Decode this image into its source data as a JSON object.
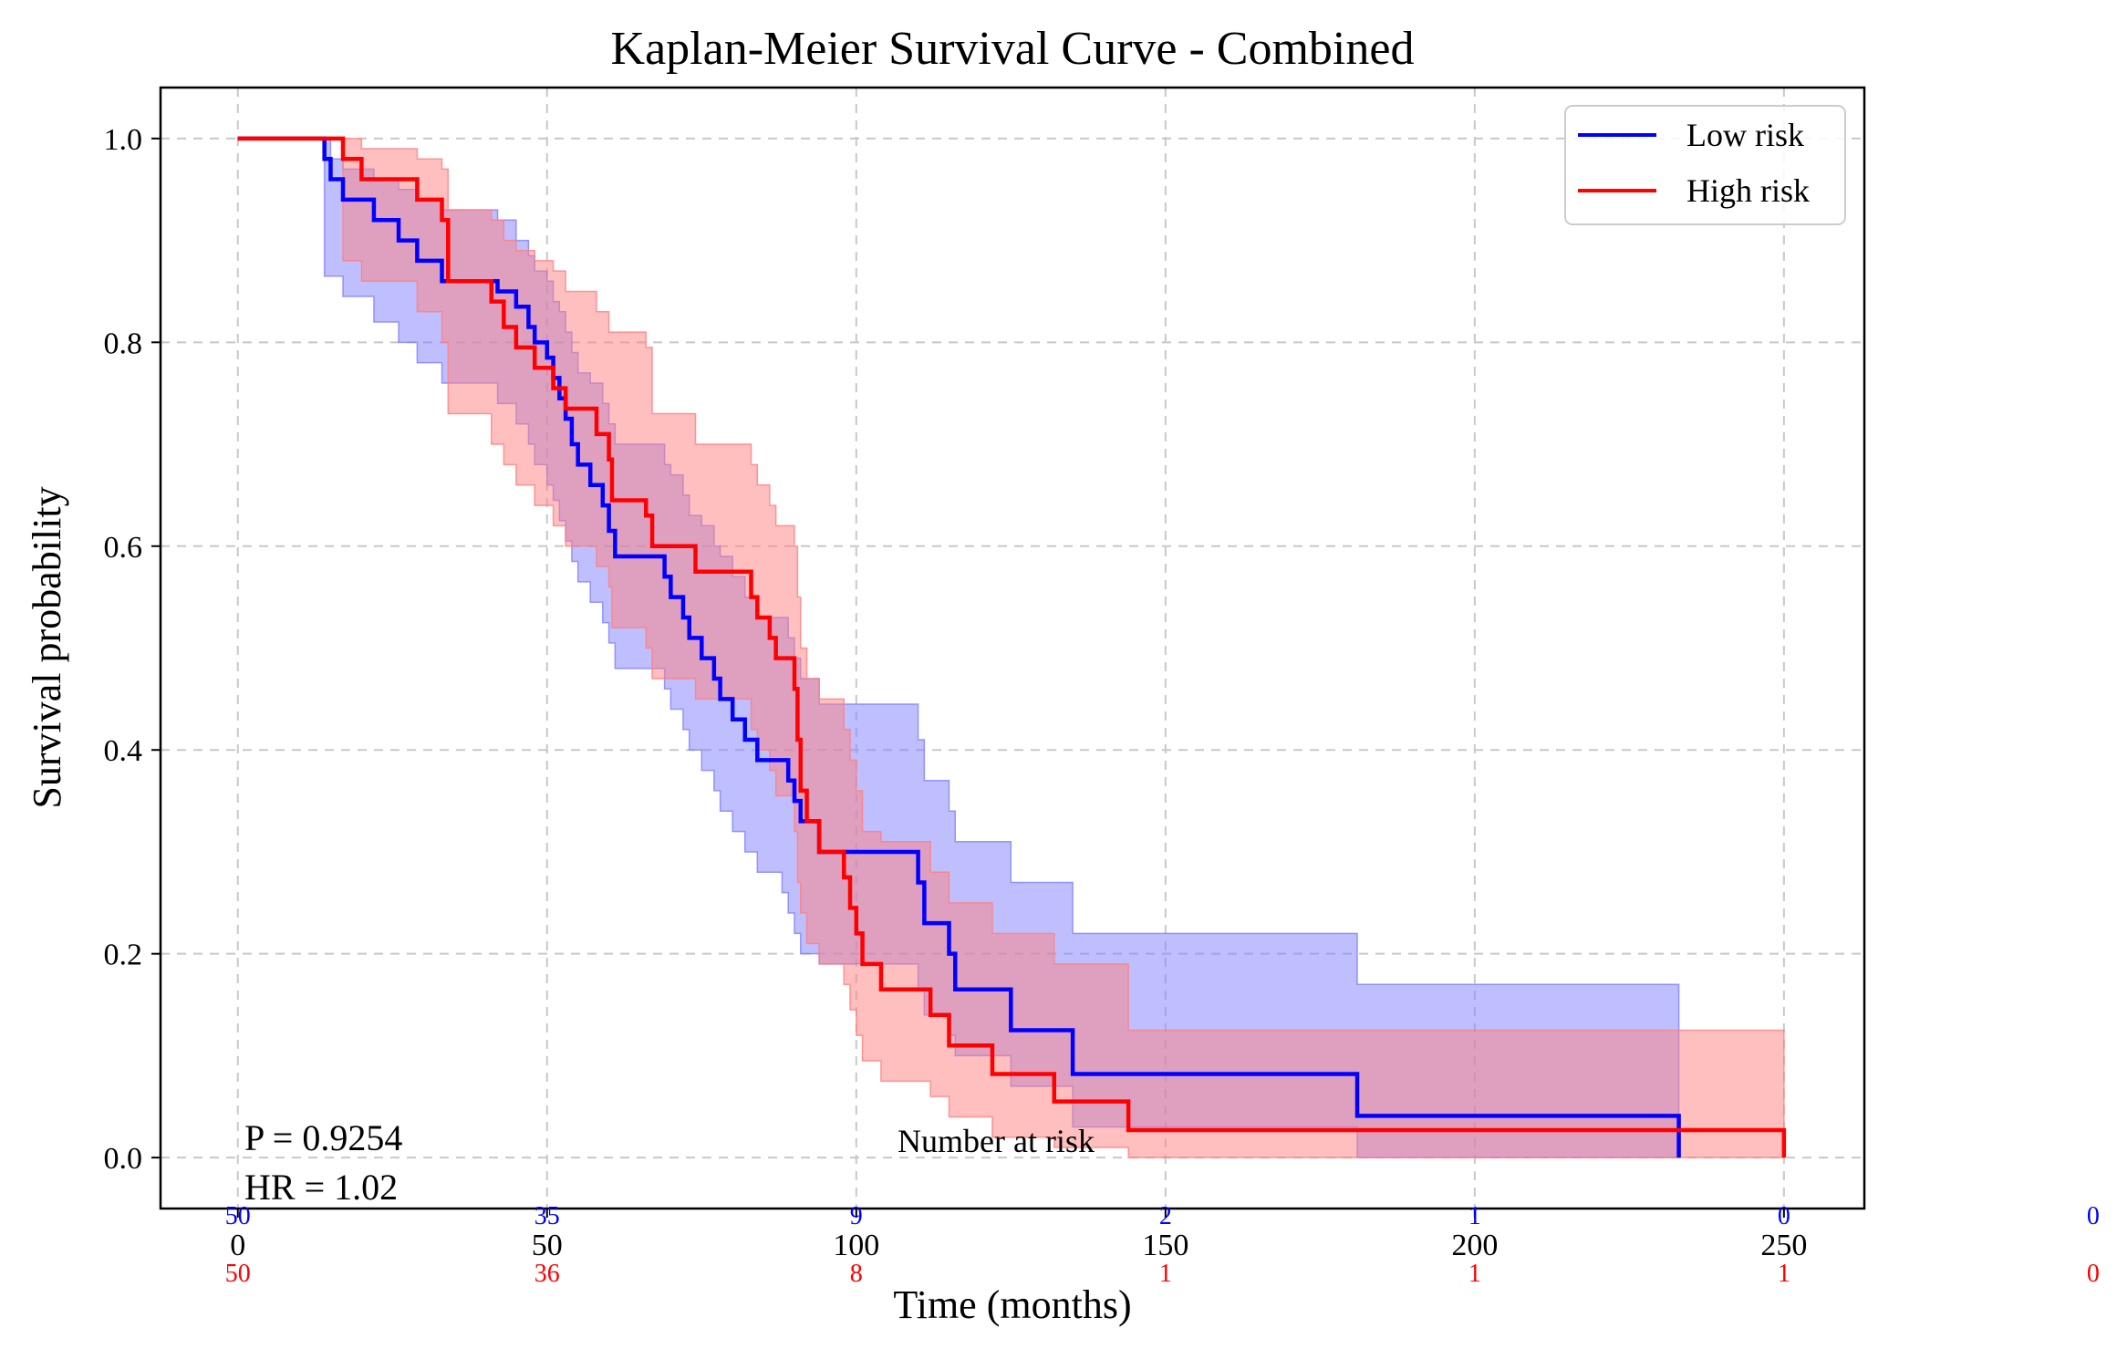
{
  "chart_data": {
    "type": "line",
    "title": "Kaplan-Meier Survival Curve - Combined",
    "xlabel": "Time (months)",
    "ylabel": "Survival probability",
    "xlim": [
      -12.5,
      263
    ],
    "ylim": [
      -0.05,
      1.05
    ],
    "x_ticks": [
      "0",
      "50",
      "100",
      "150",
      "200",
      "250"
    ],
    "x_tick_values": [
      0,
      50,
      100,
      150,
      200,
      250
    ],
    "y_ticks": [
      "0.0",
      "0.2",
      "0.4",
      "0.6",
      "0.8",
      "1.0"
    ],
    "y_tick_values": [
      0,
      0.2,
      0.4,
      0.6,
      0.8,
      1.0
    ],
    "grid": true,
    "legend_position": "top-right",
    "series": [
      {
        "name": "Low risk",
        "color": "#0000ff",
        "band_color": "#8080ff",
        "steps": [
          [
            0,
            1.0
          ],
          [
            14,
            0.98
          ],
          [
            15,
            0.96
          ],
          [
            17,
            0.94
          ],
          [
            22,
            0.92
          ],
          [
            26,
            0.9
          ],
          [
            29,
            0.88
          ],
          [
            33,
            0.86
          ],
          [
            42,
            0.85
          ],
          [
            45,
            0.835
          ],
          [
            47,
            0.815
          ],
          [
            48,
            0.8
          ],
          [
            50,
            0.785
          ],
          [
            51,
            0.765
          ],
          [
            52,
            0.745
          ],
          [
            53,
            0.725
          ],
          [
            54,
            0.7
          ],
          [
            55,
            0.68
          ],
          [
            57,
            0.66
          ],
          [
            59,
            0.64
          ],
          [
            60,
            0.615
          ],
          [
            61,
            0.59
          ],
          [
            64,
            0.59
          ],
          [
            69,
            0.57
          ],
          [
            70,
            0.55
          ],
          [
            72,
            0.53
          ],
          [
            73,
            0.51
          ],
          [
            75,
            0.49
          ],
          [
            77,
            0.47
          ],
          [
            78,
            0.45
          ],
          [
            80,
            0.43
          ],
          [
            82,
            0.41
          ],
          [
            84,
            0.39
          ],
          [
            88,
            0.39
          ],
          [
            89,
            0.37
          ],
          [
            90,
            0.35
          ],
          [
            91,
            0.33
          ],
          [
            94,
            0.3
          ],
          [
            110,
            0.27
          ],
          [
            111,
            0.23
          ],
          [
            115,
            0.2
          ],
          [
            116,
            0.165
          ],
          [
            125,
            0.125
          ],
          [
            135,
            0.082
          ],
          [
            181,
            0.041
          ],
          [
            233,
            0.0
          ]
        ],
        "ci_upper": [
          [
            0,
            1.0
          ],
          [
            14,
            1.0
          ],
          [
            15,
            0.98
          ],
          [
            17,
            0.97
          ],
          [
            22,
            0.96
          ],
          [
            26,
            0.95
          ],
          [
            29,
            0.94
          ],
          [
            33,
            0.93
          ],
          [
            42,
            0.92
          ],
          [
            45,
            0.9
          ],
          [
            47,
            0.885
          ],
          [
            48,
            0.87
          ],
          [
            50,
            0.86
          ],
          [
            51,
            0.84
          ],
          [
            52,
            0.83
          ],
          [
            53,
            0.81
          ],
          [
            54,
            0.79
          ],
          [
            55,
            0.77
          ],
          [
            57,
            0.76
          ],
          [
            59,
            0.74
          ],
          [
            60,
            0.72
          ],
          [
            61,
            0.7
          ],
          [
            69,
            0.68
          ],
          [
            70,
            0.67
          ],
          [
            72,
            0.65
          ],
          [
            73,
            0.63
          ],
          [
            75,
            0.62
          ],
          [
            77,
            0.6
          ],
          [
            78,
            0.59
          ],
          [
            80,
            0.57
          ],
          [
            82,
            0.55
          ],
          [
            84,
            0.53
          ],
          [
            89,
            0.51
          ],
          [
            90,
            0.49
          ],
          [
            91,
            0.47
          ],
          [
            94,
            0.445
          ],
          [
            110,
            0.41
          ],
          [
            111,
            0.37
          ],
          [
            115,
            0.34
          ],
          [
            116,
            0.31
          ],
          [
            125,
            0.27
          ],
          [
            135,
            0.22
          ],
          [
            181,
            0.17
          ],
          [
            233,
            0.17
          ]
        ],
        "ci_lower": [
          [
            0,
            1.0
          ],
          [
            14,
            0.865
          ],
          [
            17,
            0.845
          ],
          [
            22,
            0.82
          ],
          [
            26,
            0.8
          ],
          [
            29,
            0.78
          ],
          [
            33,
            0.76
          ],
          [
            42,
            0.74
          ],
          [
            45,
            0.72
          ],
          [
            47,
            0.7
          ],
          [
            48,
            0.68
          ],
          [
            50,
            0.66
          ],
          [
            51,
            0.645
          ],
          [
            52,
            0.625
          ],
          [
            53,
            0.605
          ],
          [
            54,
            0.585
          ],
          [
            55,
            0.565
          ],
          [
            57,
            0.545
          ],
          [
            59,
            0.525
          ],
          [
            60,
            0.505
          ],
          [
            61,
            0.48
          ],
          [
            64,
            0.48
          ],
          [
            69,
            0.46
          ],
          [
            70,
            0.44
          ],
          [
            72,
            0.42
          ],
          [
            73,
            0.4
          ],
          [
            75,
            0.38
          ],
          [
            77,
            0.36
          ],
          [
            78,
            0.34
          ],
          [
            80,
            0.32
          ],
          [
            82,
            0.3
          ],
          [
            84,
            0.28
          ],
          [
            88,
            0.26
          ],
          [
            89,
            0.24
          ],
          [
            90,
            0.22
          ],
          [
            91,
            0.2
          ],
          [
            94,
            0.19
          ],
          [
            110,
            0.165
          ],
          [
            111,
            0.14
          ],
          [
            115,
            0.12
          ],
          [
            116,
            0.1
          ],
          [
            125,
            0.07
          ],
          [
            135,
            0.03
          ],
          [
            181,
            0.0
          ],
          [
            233,
            0.0
          ]
        ]
      },
      {
        "name": "High risk",
        "color": "#ff0000",
        "band_color": "#ff8080",
        "steps": [
          [
            0,
            1.0
          ],
          [
            17,
            0.98
          ],
          [
            20,
            0.96
          ],
          [
            29,
            0.94
          ],
          [
            33,
            0.92
          ],
          [
            34,
            0.86
          ],
          [
            41,
            0.84
          ],
          [
            43,
            0.815
          ],
          [
            45,
            0.795
          ],
          [
            48,
            0.775
          ],
          [
            51,
            0.755
          ],
          [
            53,
            0.735
          ],
          [
            58,
            0.71
          ],
          [
            60,
            0.685
          ],
          [
            60.5,
            0.645
          ],
          [
            66,
            0.63
          ],
          [
            67,
            0.6
          ],
          [
            74,
            0.575
          ],
          [
            83,
            0.55
          ],
          [
            84,
            0.53
          ],
          [
            86,
            0.51
          ],
          [
            87,
            0.49
          ],
          [
            90,
            0.46
          ],
          [
            90.5,
            0.41
          ],
          [
            91,
            0.36
          ],
          [
            92,
            0.33
          ],
          [
            94,
            0.3
          ],
          [
            98,
            0.275
          ],
          [
            99,
            0.245
          ],
          [
            100,
            0.22
          ],
          [
            101,
            0.19
          ],
          [
            104,
            0.165
          ],
          [
            112,
            0.14
          ],
          [
            115,
            0.11
          ],
          [
            122,
            0.082
          ],
          [
            132,
            0.055
          ],
          [
            144,
            0.027
          ],
          [
            250,
            0.0
          ]
        ],
        "ci_upper": [
          [
            0,
            1.0
          ],
          [
            17,
            1.0
          ],
          [
            20,
            0.99
          ],
          [
            29,
            0.98
          ],
          [
            33,
            0.97
          ],
          [
            34,
            0.93
          ],
          [
            41,
            0.92
          ],
          [
            43,
            0.9
          ],
          [
            45,
            0.89
          ],
          [
            48,
            0.88
          ],
          [
            51,
            0.87
          ],
          [
            53,
            0.85
          ],
          [
            58,
            0.83
          ],
          [
            60,
            0.81
          ],
          [
            66,
            0.795
          ],
          [
            67,
            0.73
          ],
          [
            74,
            0.7
          ],
          [
            83,
            0.68
          ],
          [
            84,
            0.66
          ],
          [
            86,
            0.64
          ],
          [
            87,
            0.62
          ],
          [
            90,
            0.6
          ],
          [
            90.5,
            0.55
          ],
          [
            91,
            0.5
          ],
          [
            92,
            0.47
          ],
          [
            94,
            0.45
          ],
          [
            98,
            0.42
          ],
          [
            99,
            0.39
          ],
          [
            100,
            0.36
          ],
          [
            101,
            0.32
          ],
          [
            104,
            0.31
          ],
          [
            112,
            0.28
          ],
          [
            115,
            0.25
          ],
          [
            122,
            0.22
          ],
          [
            132,
            0.19
          ],
          [
            144,
            0.125
          ],
          [
            250,
            0.125
          ]
        ],
        "ci_lower": [
          [
            0,
            1.0
          ],
          [
            17,
            0.88
          ],
          [
            20,
            0.86
          ],
          [
            29,
            0.83
          ],
          [
            33,
            0.8
          ],
          [
            34,
            0.73
          ],
          [
            41,
            0.7
          ],
          [
            43,
            0.68
          ],
          [
            45,
            0.66
          ],
          [
            48,
            0.64
          ],
          [
            51,
            0.62
          ],
          [
            53,
            0.6
          ],
          [
            58,
            0.58
          ],
          [
            60,
            0.56
          ],
          [
            60.5,
            0.52
          ],
          [
            66,
            0.5
          ],
          [
            67,
            0.47
          ],
          [
            74,
            0.45
          ],
          [
            83,
            0.42
          ],
          [
            84,
            0.4
          ],
          [
            86,
            0.38
          ],
          [
            87,
            0.355
          ],
          [
            90,
            0.32
          ],
          [
            90.5,
            0.27
          ],
          [
            91,
            0.24
          ],
          [
            92,
            0.21
          ],
          [
            94,
            0.19
          ],
          [
            98,
            0.17
          ],
          [
            99,
            0.145
          ],
          [
            100,
            0.12
          ],
          [
            101,
            0.095
          ],
          [
            104,
            0.075
          ],
          [
            112,
            0.06
          ],
          [
            115,
            0.04
          ],
          [
            122,
            0.02
          ],
          [
            132,
            0.01
          ],
          [
            144,
            0.0
          ],
          [
            250,
            0.0
          ]
        ]
      }
    ],
    "annotations": {
      "p_value": "P = 0.9254",
      "hr": "HR = 1.02",
      "risk_table_title": "Number at risk"
    },
    "number_at_risk": {
      "times": [
        0,
        50,
        100,
        150,
        200,
        250,
        300
      ],
      "low_risk": [
        "50",
        "35",
        "9",
        "2",
        "1",
        "0",
        "0"
      ],
      "high_risk": [
        "50",
        "36",
        "8",
        "1",
        "1",
        "1",
        "0"
      ]
    }
  }
}
